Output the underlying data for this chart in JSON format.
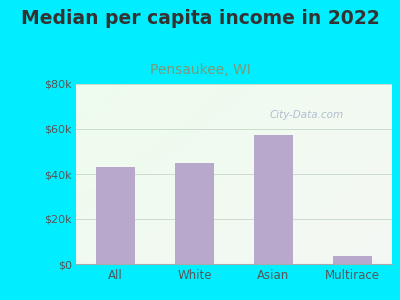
{
  "title": "Median per capita income in 2022",
  "subtitle": "Pensaukee, WI",
  "categories": [
    "All",
    "White",
    "Asian",
    "Multirace"
  ],
  "values": [
    43000,
    45000,
    57500,
    3500
  ],
  "bar_color": "#b8a8cc",
  "title_fontsize": 13.5,
  "subtitle_fontsize": 10,
  "subtitle_color": "#7a9a7a",
  "title_color": "#333333",
  "tick_color": "#555555",
  "bg_outer": "#00eeff",
  "ylim": [
    0,
    80000
  ],
  "yticks": [
    0,
    20000,
    40000,
    60000,
    80000
  ],
  "ytick_labels": [
    "$0",
    "$20k",
    "$40k",
    "$60k",
    "$80k"
  ],
  "watermark": "City-Data.com",
  "watermark_color": "#aab8cc",
  "grid_color": "#ccddcc",
  "bg_grad_topleft": "#e8f5e8",
  "bg_grad_bottomright": "#f8fff8",
  "bg_top_color": "#e8eef5"
}
